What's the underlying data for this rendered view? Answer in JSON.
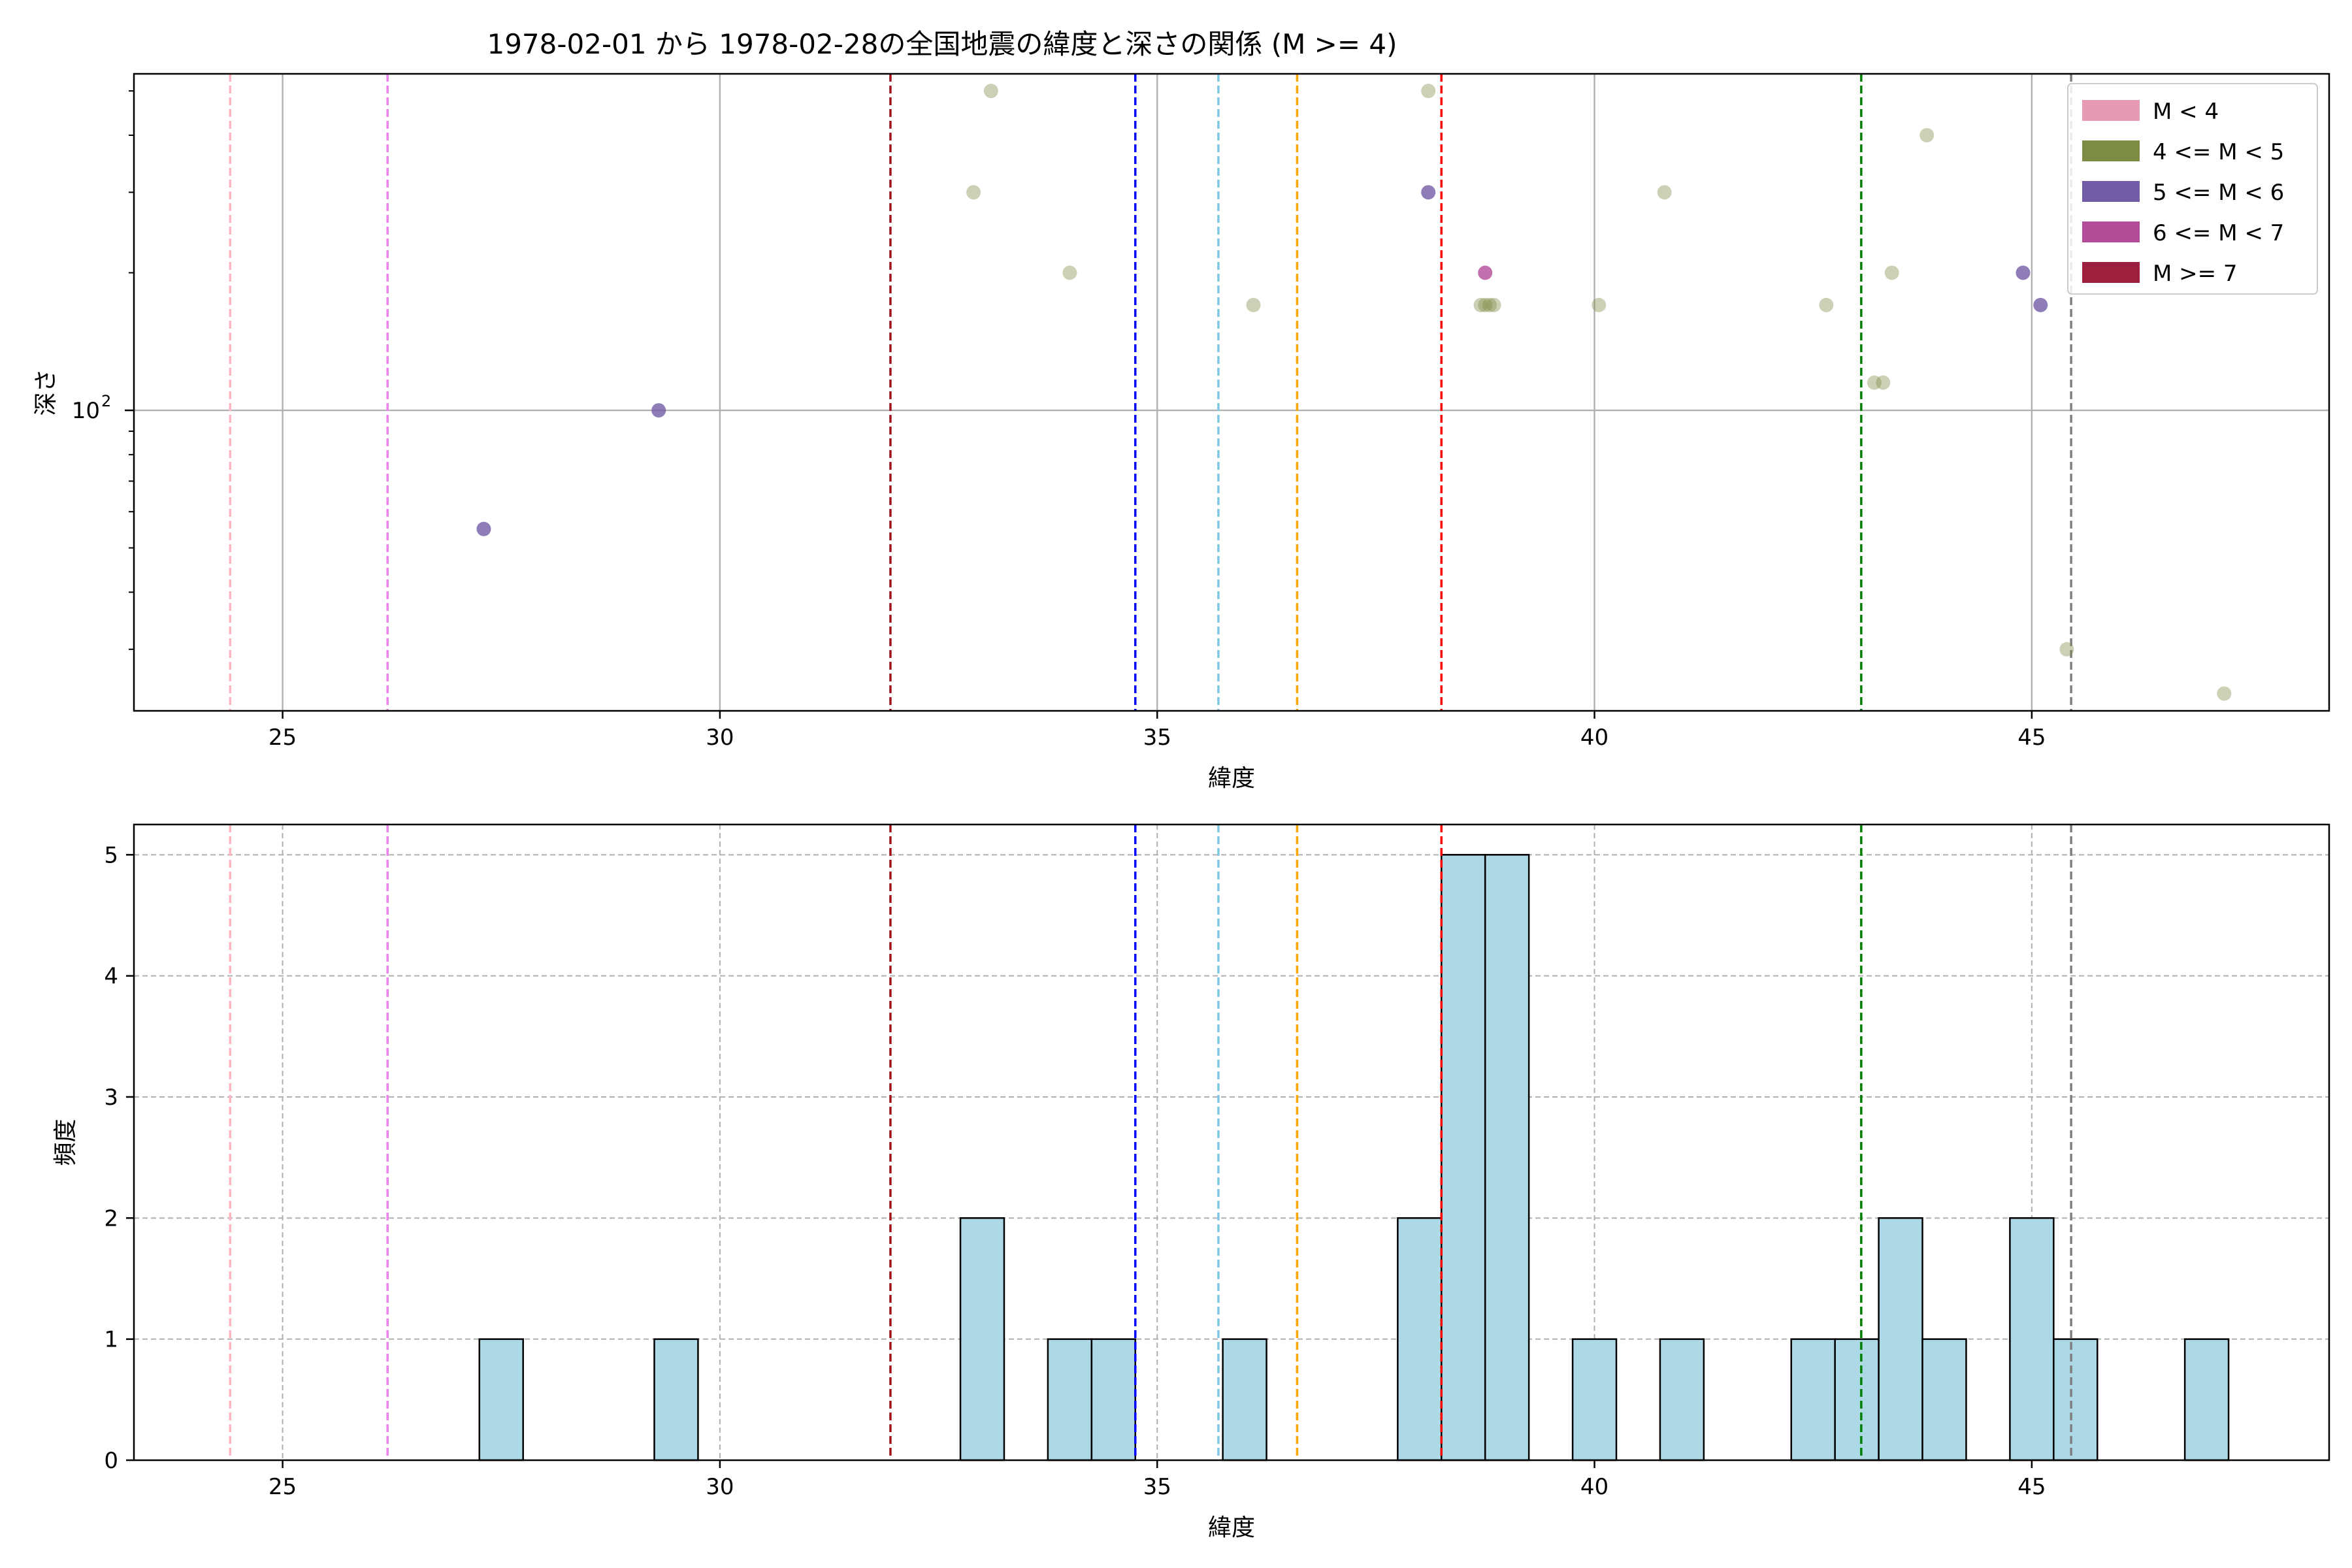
{
  "figure_title": "1978-02-01 から 1978-02-28の全国地震の緯度と深さの関係 (M >= 4)",
  "chart_data": [
    {
      "type": "scatter",
      "title": "1978-02-01 から 1978-02-28の全国地震の緯度と深さの関係 (M >= 4)",
      "xlabel": "緯度",
      "ylabel": "深さ",
      "xlim": [
        23.3,
        48.4
      ],
      "ylim": [
        22,
        545
      ],
      "yscale": "log",
      "grid": true,
      "x_ticks": [
        25,
        30,
        35,
        40,
        45
      ],
      "y_major_ticks": [
        {
          "value": 100,
          "label": "10",
          "exponent": "2"
        }
      ],
      "legend": {
        "placement": "top-right",
        "entries": [
          {
            "label": "M < 4",
            "color": "#e79ab5"
          },
          {
            "label": "4 <= M < 5",
            "color": "#7d8c45"
          },
          {
            "label": "5 <= M < 6",
            "color": "#735ca6"
          },
          {
            "label": "6 <= M < 7",
            "color": "#b24c99"
          },
          {
            "label": "M >= 7",
            "color": "#9c1f3e"
          }
        ]
      },
      "vlines": [
        {
          "x": 24.4,
          "color": "#ffb6c1"
        },
        {
          "x": 26.2,
          "color": "#ee82ee"
        },
        {
          "x": 31.95,
          "color": "#a0141e"
        },
        {
          "x": 34.75,
          "color": "#0000ff"
        },
        {
          "x": 35.7,
          "color": "#7ec8e3"
        },
        {
          "x": 36.6,
          "color": "#ffa500"
        },
        {
          "x": 38.25,
          "color": "#ff0000"
        },
        {
          "x": 43.05,
          "color": "#008000"
        },
        {
          "x": 45.45,
          "color": "#808080"
        }
      ],
      "series": [
        {
          "name": "4 <= M < 5",
          "color": "#7d8c45",
          "alpha": 0.4,
          "points": [
            [
              33.1,
              500
            ],
            [
              38.1,
              500
            ],
            [
              32.9,
              300
            ],
            [
              34.0,
              200
            ],
            [
              40.8,
              300
            ],
            [
              43.8,
              400
            ],
            [
              36.1,
              170
            ],
            [
              38.7,
              170
            ],
            [
              38.75,
              170
            ],
            [
              38.8,
              170
            ],
            [
              38.85,
              170
            ],
            [
              40.05,
              170
            ],
            [
              42.65,
              170
            ],
            [
              43.4,
              200
            ],
            [
              43.2,
              115
            ],
            [
              43.3,
              115
            ],
            [
              45.4,
              30
            ],
            [
              47.2,
              24
            ]
          ]
        },
        {
          "name": "5 <= M < 6",
          "color": "#735ca6",
          "alpha": 0.8,
          "points": [
            [
              27.3,
              55
            ],
            [
              29.3,
              100
            ],
            [
              38.1,
              300
            ],
            [
              44.9,
              200
            ],
            [
              45.1,
              170
            ]
          ]
        },
        {
          "name": "6 <= M < 7",
          "color": "#b24c99",
          "alpha": 0.8,
          "points": [
            [
              38.75,
              200
            ]
          ]
        }
      ]
    },
    {
      "type": "bar",
      "xlabel": "緯度",
      "ylabel": "頻度",
      "xlim": [
        23.3,
        48.4
      ],
      "ylim": [
        0,
        5.25
      ],
      "grid": true,
      "bar_color": "#add8e6",
      "x_ticks": [
        25,
        30,
        35,
        40,
        45
      ],
      "y_ticks": [
        0,
        1,
        2,
        3,
        4,
        5
      ],
      "bin_width": 0.5,
      "bins": [
        {
          "start": 27.25,
          "count": 1
        },
        {
          "start": 29.25,
          "count": 1
        },
        {
          "start": 32.75,
          "count": 2
        },
        {
          "start": 33.75,
          "count": 1
        },
        {
          "start": 34.25,
          "count": 1
        },
        {
          "start": 35.75,
          "count": 1
        },
        {
          "start": 37.75,
          "count": 2
        },
        {
          "start": 38.25,
          "count": 5
        },
        {
          "start": 38.75,
          "count": 5
        },
        {
          "start": 39.75,
          "count": 1
        },
        {
          "start": 40.75,
          "count": 1
        },
        {
          "start": 42.25,
          "count": 1
        },
        {
          "start": 42.75,
          "count": 1
        },
        {
          "start": 43.25,
          "count": 2
        },
        {
          "start": 43.75,
          "count": 1
        },
        {
          "start": 44.75,
          "count": 2
        },
        {
          "start": 45.25,
          "count": 1
        },
        {
          "start": 46.75,
          "count": 1
        }
      ],
      "vlines": [
        {
          "x": 24.4,
          "color": "#ffb6c1"
        },
        {
          "x": 26.2,
          "color": "#ee82ee"
        },
        {
          "x": 31.95,
          "color": "#a0141e"
        },
        {
          "x": 34.75,
          "color": "#0000ff"
        },
        {
          "x": 35.7,
          "color": "#7ec8e3"
        },
        {
          "x": 36.6,
          "color": "#ffa500"
        },
        {
          "x": 38.25,
          "color": "#ff0000"
        },
        {
          "x": 43.05,
          "color": "#008000"
        },
        {
          "x": 45.45,
          "color": "#808080"
        }
      ]
    }
  ]
}
